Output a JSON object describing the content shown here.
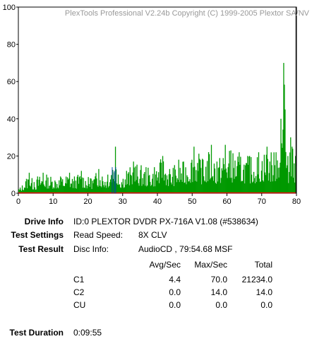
{
  "chart_data": {
    "type": "bar",
    "title": "PlexTools Professional V2.24b Copyright (C) 1999-2005 Plextor SA/NV",
    "xlim": [
      0,
      80
    ],
    "ylim": [
      0,
      100
    ],
    "x_ticks": [
      "0",
      "10",
      "20",
      "30",
      "40",
      "50",
      "60",
      "70",
      "80"
    ],
    "y_ticks": [
      "0",
      "20",
      "40",
      "60",
      "80",
      "100"
    ],
    "end_marker_x": 79.91,
    "grid": false,
    "legend": "none",
    "series": [
      {
        "name": "C1",
        "color": "#009900",
        "peaks": [
          {
            "x": 0.5,
            "y": 3
          },
          {
            "x": 2.5,
            "y": 10
          },
          {
            "x": 3.0,
            "y": 11
          },
          {
            "x": 4.5,
            "y": 6
          },
          {
            "x": 5.5,
            "y": 9
          },
          {
            "x": 7.0,
            "y": 11
          },
          {
            "x": 8.0,
            "y": 10
          },
          {
            "x": 12.0,
            "y": 9
          },
          {
            "x": 14.5,
            "y": 11
          },
          {
            "x": 16.0,
            "y": 9
          },
          {
            "x": 18.0,
            "y": 12
          },
          {
            "x": 20.5,
            "y": 8
          },
          {
            "x": 23.0,
            "y": 13
          },
          {
            "x": 25.5,
            "y": 10
          },
          {
            "x": 27.8,
            "y": 25
          },
          {
            "x": 28.5,
            "y": 10
          },
          {
            "x": 31.0,
            "y": 12
          },
          {
            "x": 33.0,
            "y": 17
          },
          {
            "x": 36.5,
            "y": 14
          },
          {
            "x": 39.0,
            "y": 14
          },
          {
            "x": 41.5,
            "y": 20
          },
          {
            "x": 43.5,
            "y": 13
          },
          {
            "x": 46.0,
            "y": 18
          },
          {
            "x": 47.5,
            "y": 17
          },
          {
            "x": 50.5,
            "y": 25
          },
          {
            "x": 53.0,
            "y": 18
          },
          {
            "x": 55.5,
            "y": 26
          },
          {
            "x": 57.0,
            "y": 17
          },
          {
            "x": 59.5,
            "y": 26
          },
          {
            "x": 61.0,
            "y": 23
          },
          {
            "x": 63.5,
            "y": 22
          },
          {
            "x": 66.5,
            "y": 20
          },
          {
            "x": 69.0,
            "y": 22
          },
          {
            "x": 71.5,
            "y": 25
          },
          {
            "x": 74.0,
            "y": 22
          },
          {
            "x": 75.5,
            "y": 40
          },
          {
            "x": 76.3,
            "y": 70
          },
          {
            "x": 76.6,
            "y": 45
          },
          {
            "x": 77.5,
            "y": 20
          },
          {
            "x": 78.2,
            "y": 30
          },
          {
            "x": 78.6,
            "y": 25
          },
          {
            "x": 79.6,
            "y": 20
          }
        ]
      },
      {
        "name": "C2",
        "color": "#ff0000",
        "peaks": [
          {
            "x": 27.0,
            "y": 14
          },
          {
            "x": 27.6,
            "y": 12
          },
          {
            "x": 28.0,
            "y": 14
          }
        ]
      }
    ]
  },
  "info": {
    "drive_label": "Drive Info",
    "drive_value": "ID:0 PLEXTOR DVDR PX-716A V1.08 (#538634)",
    "settings_label": "Test Settings",
    "read_speed_label": "Read Speed:",
    "read_speed_value": "8X CLV",
    "result_label": "Test Result",
    "disc_info_label": "Disc Info:",
    "disc_info_value": "AudioCD , 79:54.68 MSF",
    "col_avg": "Avg/Sec",
    "col_max": "Max/Sec",
    "col_total": "Total",
    "rows": [
      {
        "name": "C1",
        "avg": "4.4",
        "max": "70.0",
        "total": "21234.0"
      },
      {
        "name": "C2",
        "avg": "0.0",
        "max": "14.0",
        "total": "14.0"
      },
      {
        "name": "CU",
        "avg": "0.0",
        "max": "0.0",
        "total": "0.0"
      }
    ],
    "duration_label": "Test Duration",
    "duration_value": "0:09:55"
  }
}
